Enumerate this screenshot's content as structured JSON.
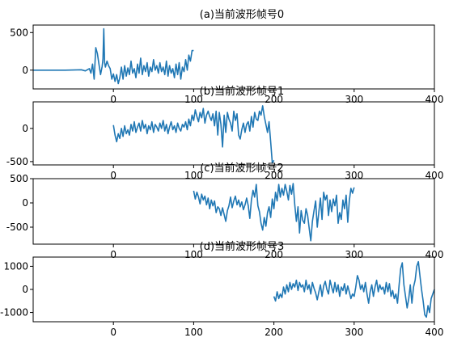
{
  "chart_data": [
    {
      "type": "line",
      "title": "(a)当前波形帧号0",
      "xlim": [
        -100,
        400
      ],
      "ylim": [
        -250,
        600
      ],
      "xticks": [
        0,
        100,
        200,
        300,
        400
      ],
      "yticks": [
        0,
        500
      ],
      "color": "#1f77b4",
      "series": [
        {
          "x": [
            -100,
            -90,
            -80,
            -70,
            -60,
            -50,
            -40,
            -35,
            -30,
            -28,
            -26,
            -24,
            -22,
            -20,
            -18,
            -16,
            -14,
            -13,
            -12,
            -11,
            -10,
            -8,
            -6,
            -4,
            -2,
            0,
            2,
            4,
            6,
            8,
            10,
            12,
            14,
            16,
            18,
            20,
            22,
            24,
            26,
            28,
            30,
            32,
            34,
            36,
            38,
            40,
            42,
            44,
            46,
            48,
            50,
            52,
            54,
            56,
            58,
            60,
            62,
            64,
            66,
            68,
            70,
            72,
            74,
            76,
            78,
            80,
            82,
            84,
            86,
            88,
            90,
            92,
            94,
            96,
            98,
            100
          ],
          "y": [
            0,
            0,
            0,
            0,
            0,
            2,
            5,
            -10,
            20,
            -40,
            80,
            -120,
            300,
            220,
            80,
            -60,
            50,
            150,
            550,
            100,
            40,
            120,
            60,
            20,
            -120,
            -50,
            -150,
            -60,
            -180,
            -100,
            40,
            -120,
            60,
            -80,
            30,
            -60,
            120,
            -40,
            20,
            -100,
            80,
            -40,
            160,
            -60,
            60,
            -20,
            100,
            -80,
            40,
            -20,
            140,
            0,
            60,
            -40,
            100,
            -20,
            40,
            -60,
            120,
            -80,
            60,
            -40,
            20,
            -100,
            80,
            -60,
            100,
            -120,
            40,
            -20,
            140,
            0,
            200,
            120,
            260,
            260
          ]
        }
      ]
    },
    {
      "type": "line",
      "title": "(b)当前波形帧号1",
      "xlim": [
        -100,
        400
      ],
      "ylim": [
        -550,
        400
      ],
      "xticks": [
        0,
        100,
        200,
        300,
        400
      ],
      "yticks": [
        -500,
        0
      ],
      "color": "#1f77b4",
      "series": [
        {
          "x": [
            0,
            2,
            4,
            6,
            8,
            10,
            12,
            14,
            16,
            18,
            20,
            22,
            24,
            26,
            28,
            30,
            32,
            34,
            36,
            38,
            40,
            42,
            44,
            46,
            48,
            50,
            52,
            54,
            56,
            58,
            60,
            62,
            64,
            66,
            68,
            70,
            72,
            74,
            76,
            78,
            80,
            82,
            84,
            86,
            88,
            90,
            92,
            94,
            96,
            98,
            100,
            102,
            104,
            106,
            108,
            110,
            112,
            114,
            116,
            118,
            120,
            122,
            124,
            126,
            128,
            130,
            132,
            134,
            136,
            138,
            140,
            142,
            144,
            146,
            148,
            150,
            152,
            154,
            156,
            158,
            160,
            162,
            164,
            166,
            168,
            170,
            172,
            174,
            176,
            178,
            180,
            182,
            184,
            186,
            188,
            190,
            192,
            194,
            196,
            198,
            200
          ],
          "y": [
            50,
            -100,
            -200,
            -80,
            -150,
            0,
            -120,
            40,
            -80,
            -20,
            -100,
            60,
            -40,
            100,
            -60,
            20,
            80,
            -40,
            120,
            0,
            60,
            -80,
            40,
            -20,
            100,
            -60,
            60,
            20,
            -40,
            80,
            0,
            120,
            -40,
            60,
            -80,
            20,
            100,
            -20,
            40,
            -60,
            80,
            0,
            -40,
            60,
            20,
            100,
            -20,
            140,
            40,
            200,
            120,
            280,
            180,
            100,
            240,
            160,
            300,
            80,
            200,
            260,
            180,
            120,
            220,
            40,
            260,
            -100,
            240,
            60,
            -280,
            200,
            -60,
            240,
            140,
            80,
            -40,
            260,
            120,
            220,
            -100,
            -160,
            -20,
            80,
            -60,
            60,
            100,
            -40,
            180,
            20,
            240,
            140,
            120,
            260,
            200,
            340,
            180,
            60,
            -60,
            100,
            -200,
            -520,
            -480
          ]
        }
      ]
    },
    {
      "type": "line",
      "title": "(c)当前波形帧号2",
      "xlim": [
        -100,
        400
      ],
      "ylim": [
        -850,
        500
      ],
      "xticks": [
        0,
        100,
        200,
        300,
        400
      ],
      "yticks": [
        -500,
        0,
        500
      ],
      "color": "#1f77b4",
      "series": [
        {
          "x": [
            100,
            102,
            104,
            106,
            108,
            110,
            112,
            114,
            116,
            118,
            120,
            122,
            124,
            126,
            128,
            130,
            132,
            134,
            136,
            138,
            140,
            142,
            144,
            146,
            148,
            150,
            152,
            154,
            156,
            158,
            160,
            162,
            164,
            166,
            168,
            170,
            172,
            174,
            176,
            178,
            180,
            182,
            184,
            186,
            188,
            190,
            192,
            194,
            196,
            198,
            200,
            202,
            204,
            206,
            208,
            210,
            212,
            214,
            216,
            218,
            220,
            222,
            224,
            226,
            228,
            230,
            232,
            234,
            236,
            238,
            240,
            242,
            244,
            246,
            248,
            250,
            252,
            254,
            256,
            258,
            260,
            262,
            264,
            266,
            268,
            270,
            272,
            274,
            276,
            278,
            280,
            282,
            284,
            286,
            288,
            290,
            292,
            294,
            296,
            298,
            300
          ],
          "y": [
            250,
            80,
            220,
            120,
            -20,
            180,
            60,
            140,
            -40,
            100,
            -120,
            60,
            -60,
            40,
            -200,
            -80,
            -120,
            -260,
            -100,
            -240,
            -380,
            -160,
            -60,
            120,
            -100,
            40,
            140,
            -40,
            60,
            -80,
            20,
            -140,
            -40,
            100,
            -60,
            -320,
            60,
            260,
            120,
            380,
            -60,
            -180,
            -420,
            -560,
            -300,
            -480,
            -200,
            -80,
            -300,
            80,
            -120,
            220,
            40,
            380,
            120,
            300,
            160,
            380,
            240,
            60,
            360,
            180,
            400,
            -40,
            -380,
            -80,
            -620,
            -160,
            -360,
            -420,
            -120,
            -260,
            -520,
            -780,
            -380,
            -160,
            40,
            -500,
            -180,
            100,
            -340,
            220,
            60,
            160,
            -260,
            60,
            -180,
            80,
            -60,
            160,
            -420,
            -200,
            -340,
            60,
            -120,
            160,
            -400,
            40,
            300,
            200,
            320
          ]
        }
      ]
    },
    {
      "type": "line",
      "title": "(d)当前波形帧号3",
      "xlim": [
        -100,
        400
      ],
      "ylim": [
        -1400,
        1400
      ],
      "xticks": [
        0,
        100,
        200,
        300,
        400
      ],
      "yticks": [
        -1000,
        0,
        1000
      ],
      "color": "#1f77b4",
      "series": [
        {
          "x": [
            200,
            202,
            204,
            206,
            208,
            210,
            212,
            214,
            216,
            218,
            220,
            222,
            224,
            226,
            228,
            230,
            232,
            234,
            236,
            238,
            240,
            242,
            244,
            246,
            248,
            250,
            252,
            254,
            256,
            258,
            260,
            262,
            264,
            266,
            268,
            270,
            272,
            274,
            276,
            278,
            280,
            282,
            284,
            286,
            288,
            290,
            292,
            294,
            296,
            298,
            300,
            302,
            304,
            306,
            308,
            310,
            312,
            314,
            316,
            318,
            320,
            322,
            324,
            326,
            328,
            330,
            332,
            334,
            336,
            338,
            340,
            342,
            344,
            346,
            348,
            350,
            352,
            354,
            356,
            358,
            360,
            362,
            364,
            366,
            368,
            370,
            372,
            374,
            376,
            378,
            380,
            382,
            384,
            386,
            388,
            390,
            392,
            394,
            396,
            398,
            400
          ],
          "y": [
            -300,
            -500,
            -100,
            -400,
            -200,
            -350,
            100,
            -200,
            200,
            -100,
            300,
            0,
            250,
            100,
            400,
            -50,
            300,
            100,
            200,
            -100,
            400,
            0,
            200,
            -200,
            300,
            50,
            -150,
            -450,
            -100,
            200,
            -300,
            150,
            350,
            0,
            -200,
            400,
            100,
            -150,
            300,
            -100,
            200,
            -300,
            100,
            -50,
            250,
            -200,
            150,
            -100,
            -400,
            -200,
            -300,
            100,
            600,
            400,
            0,
            200,
            -100,
            300,
            -200,
            -600,
            -100,
            200,
            -300,
            100,
            400,
            -100,
            200,
            0,
            100,
            -200,
            300,
            -100,
            250,
            -300,
            -50,
            -400,
            -200,
            -600,
            200,
            900,
            1150,
            200,
            -300,
            -800,
            -400,
            200,
            -600,
            100,
            400,
            1000,
            1200,
            600,
            0,
            -500,
            -1100,
            -1200,
            -700,
            -1000,
            -400,
            -200,
            0
          ]
        }
      ]
    }
  ]
}
